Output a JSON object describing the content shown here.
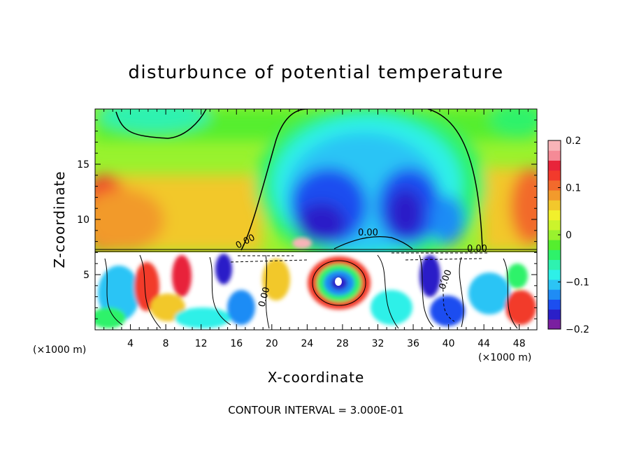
{
  "chart_data": {
    "type": "heatmap",
    "title": "disturbunce of potential temperature",
    "xlabel": "X-coordinate",
    "ylabel": "Z-coordinate",
    "x_unit_left": "(×1000 m)",
    "x_unit_right": "(×1000 m)",
    "footer": "CONTOUR INTERVAL = 3.000E-01",
    "xlim": [
      0,
      50
    ],
    "ylim": [
      0,
      20
    ],
    "x_ticks": [
      4,
      8,
      12,
      16,
      20,
      24,
      28,
      32,
      36,
      40,
      44,
      48
    ],
    "y_ticks": [
      5,
      10,
      15
    ],
    "colorbar": {
      "range": [
        -0.2,
        0.2
      ],
      "tick_values": [
        0.2,
        0.1,
        0,
        -0.1,
        -0.2
      ],
      "tick_labels": [
        "0.2",
        "0.1",
        "0",
        "−0.1",
        "−0.2"
      ],
      "colors": [
        "#7a1fa0",
        "#2b1fc8",
        "#1c4ef0",
        "#1f8cf5",
        "#2cc4f5",
        "#2ef0e8",
        "#2ef2b0",
        "#2ef26a",
        "#55ee2e",
        "#99f22e",
        "#cbf42c",
        "#f2f02c",
        "#f2c82c",
        "#f29a2c",
        "#f26a2c",
        "#f23a2c",
        "#e8243a",
        "#f58a96",
        "#f8b4b8"
      ]
    },
    "contour_labels": [
      "0.00",
      "0.00",
      "0.00",
      "0.00",
      "0.00"
    ],
    "field_regions": {
      "upper_field": "smooth potential temperature disturbance above z≈7.2 (x1000 m)",
      "lower_field": "turbulent layer below z≈7.2 with many closed contours"
    }
  }
}
